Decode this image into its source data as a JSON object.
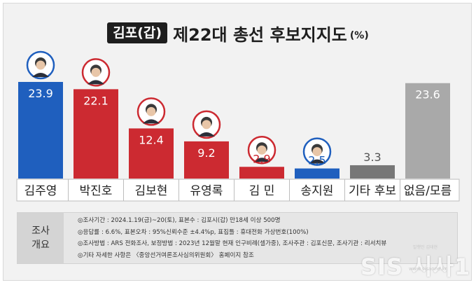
{
  "title": {
    "tag": "김포(갑)",
    "main": "제22대 총선 후보지지도",
    "unit": "(%)"
  },
  "chart_data": {
    "type": "bar",
    "title": "김포(갑) 제22대 총선 후보지지도(%)",
    "categories": [
      "김주영",
      "박진호",
      "김보현",
      "유영록",
      "김 민",
      "송지원",
      "기타 후보",
      "없음/모름"
    ],
    "values": [
      23.9,
      22.1,
      12.4,
      9.2,
      2.9,
      2.5,
      3.3,
      23.6
    ],
    "colors": [
      "#1f5fbe",
      "#cc2a31",
      "#cc2a31",
      "#cc2a31",
      "#cc2a31",
      "#1f5fbe",
      "#777777",
      "#a9a9a9"
    ],
    "portraits": [
      true,
      true,
      true,
      true,
      true,
      true,
      false,
      false
    ],
    "ylim": [
      0,
      26
    ]
  },
  "notes": {
    "header_line1": "조사",
    "header_line2": "개요",
    "lines": [
      "◎조사기간 : 2024.1.19(금)~20(토), 표본수 : 김포시(갑) 만18세 이상 500명",
      "◎응답률 : 6.6%, 표본오차 : 95%신뢰수준 ±4.4%p, 표집틀 : 휴대전화 가상번호(100%)",
      "◎조사방법 : ARS 전화조사, 보정방법 : 2023년 12월말 현재 인구비례(셀가중), 조사주관 : 김포신문, 조사기관 : 리서치뷰",
      "◎기타 자세한 사항은 〈중앙선거여론조사심의위원회〉 홈페이지 참조"
    ]
  },
  "watermark": {
    "text": "SIS 시사1",
    "sub": "www.sisaone.kr",
    "sub2": "발행인 김태현"
  }
}
